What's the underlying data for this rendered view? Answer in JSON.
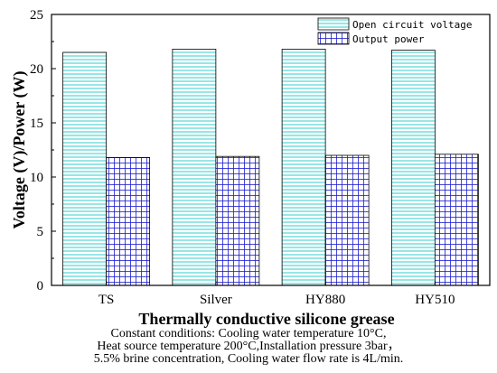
{
  "chart_data": {
    "type": "bar",
    "xlabel": "Thermally conductive silicone grease",
    "ylabel": "Voltage (V)/Power (W)",
    "categories": [
      "TS",
      "Silver",
      "HY880",
      "HY510"
    ],
    "series": [
      {
        "name": "Open circuit voltage",
        "values": [
          21.5,
          21.8,
          21.8,
          21.7
        ],
        "color": "#18c8c8",
        "pattern": "horizontal-lines"
      },
      {
        "name": "Output power",
        "values": [
          11.8,
          11.9,
          12.0,
          12.1
        ],
        "color": "#1a1acc",
        "pattern": "grid"
      }
    ],
    "ylim": [
      0,
      25
    ],
    "yticks": [
      0,
      5,
      10,
      15,
      20,
      25
    ],
    "grid": false,
    "legend_position": "top-right"
  },
  "notes": [
    "Constant conditions: Cooling water temperature 10°C,",
    "Heat source temperature 200°C,Installation pressure 3bar，",
    "5.5% brine concentration, Cooling water flow rate is 4L/min."
  ]
}
